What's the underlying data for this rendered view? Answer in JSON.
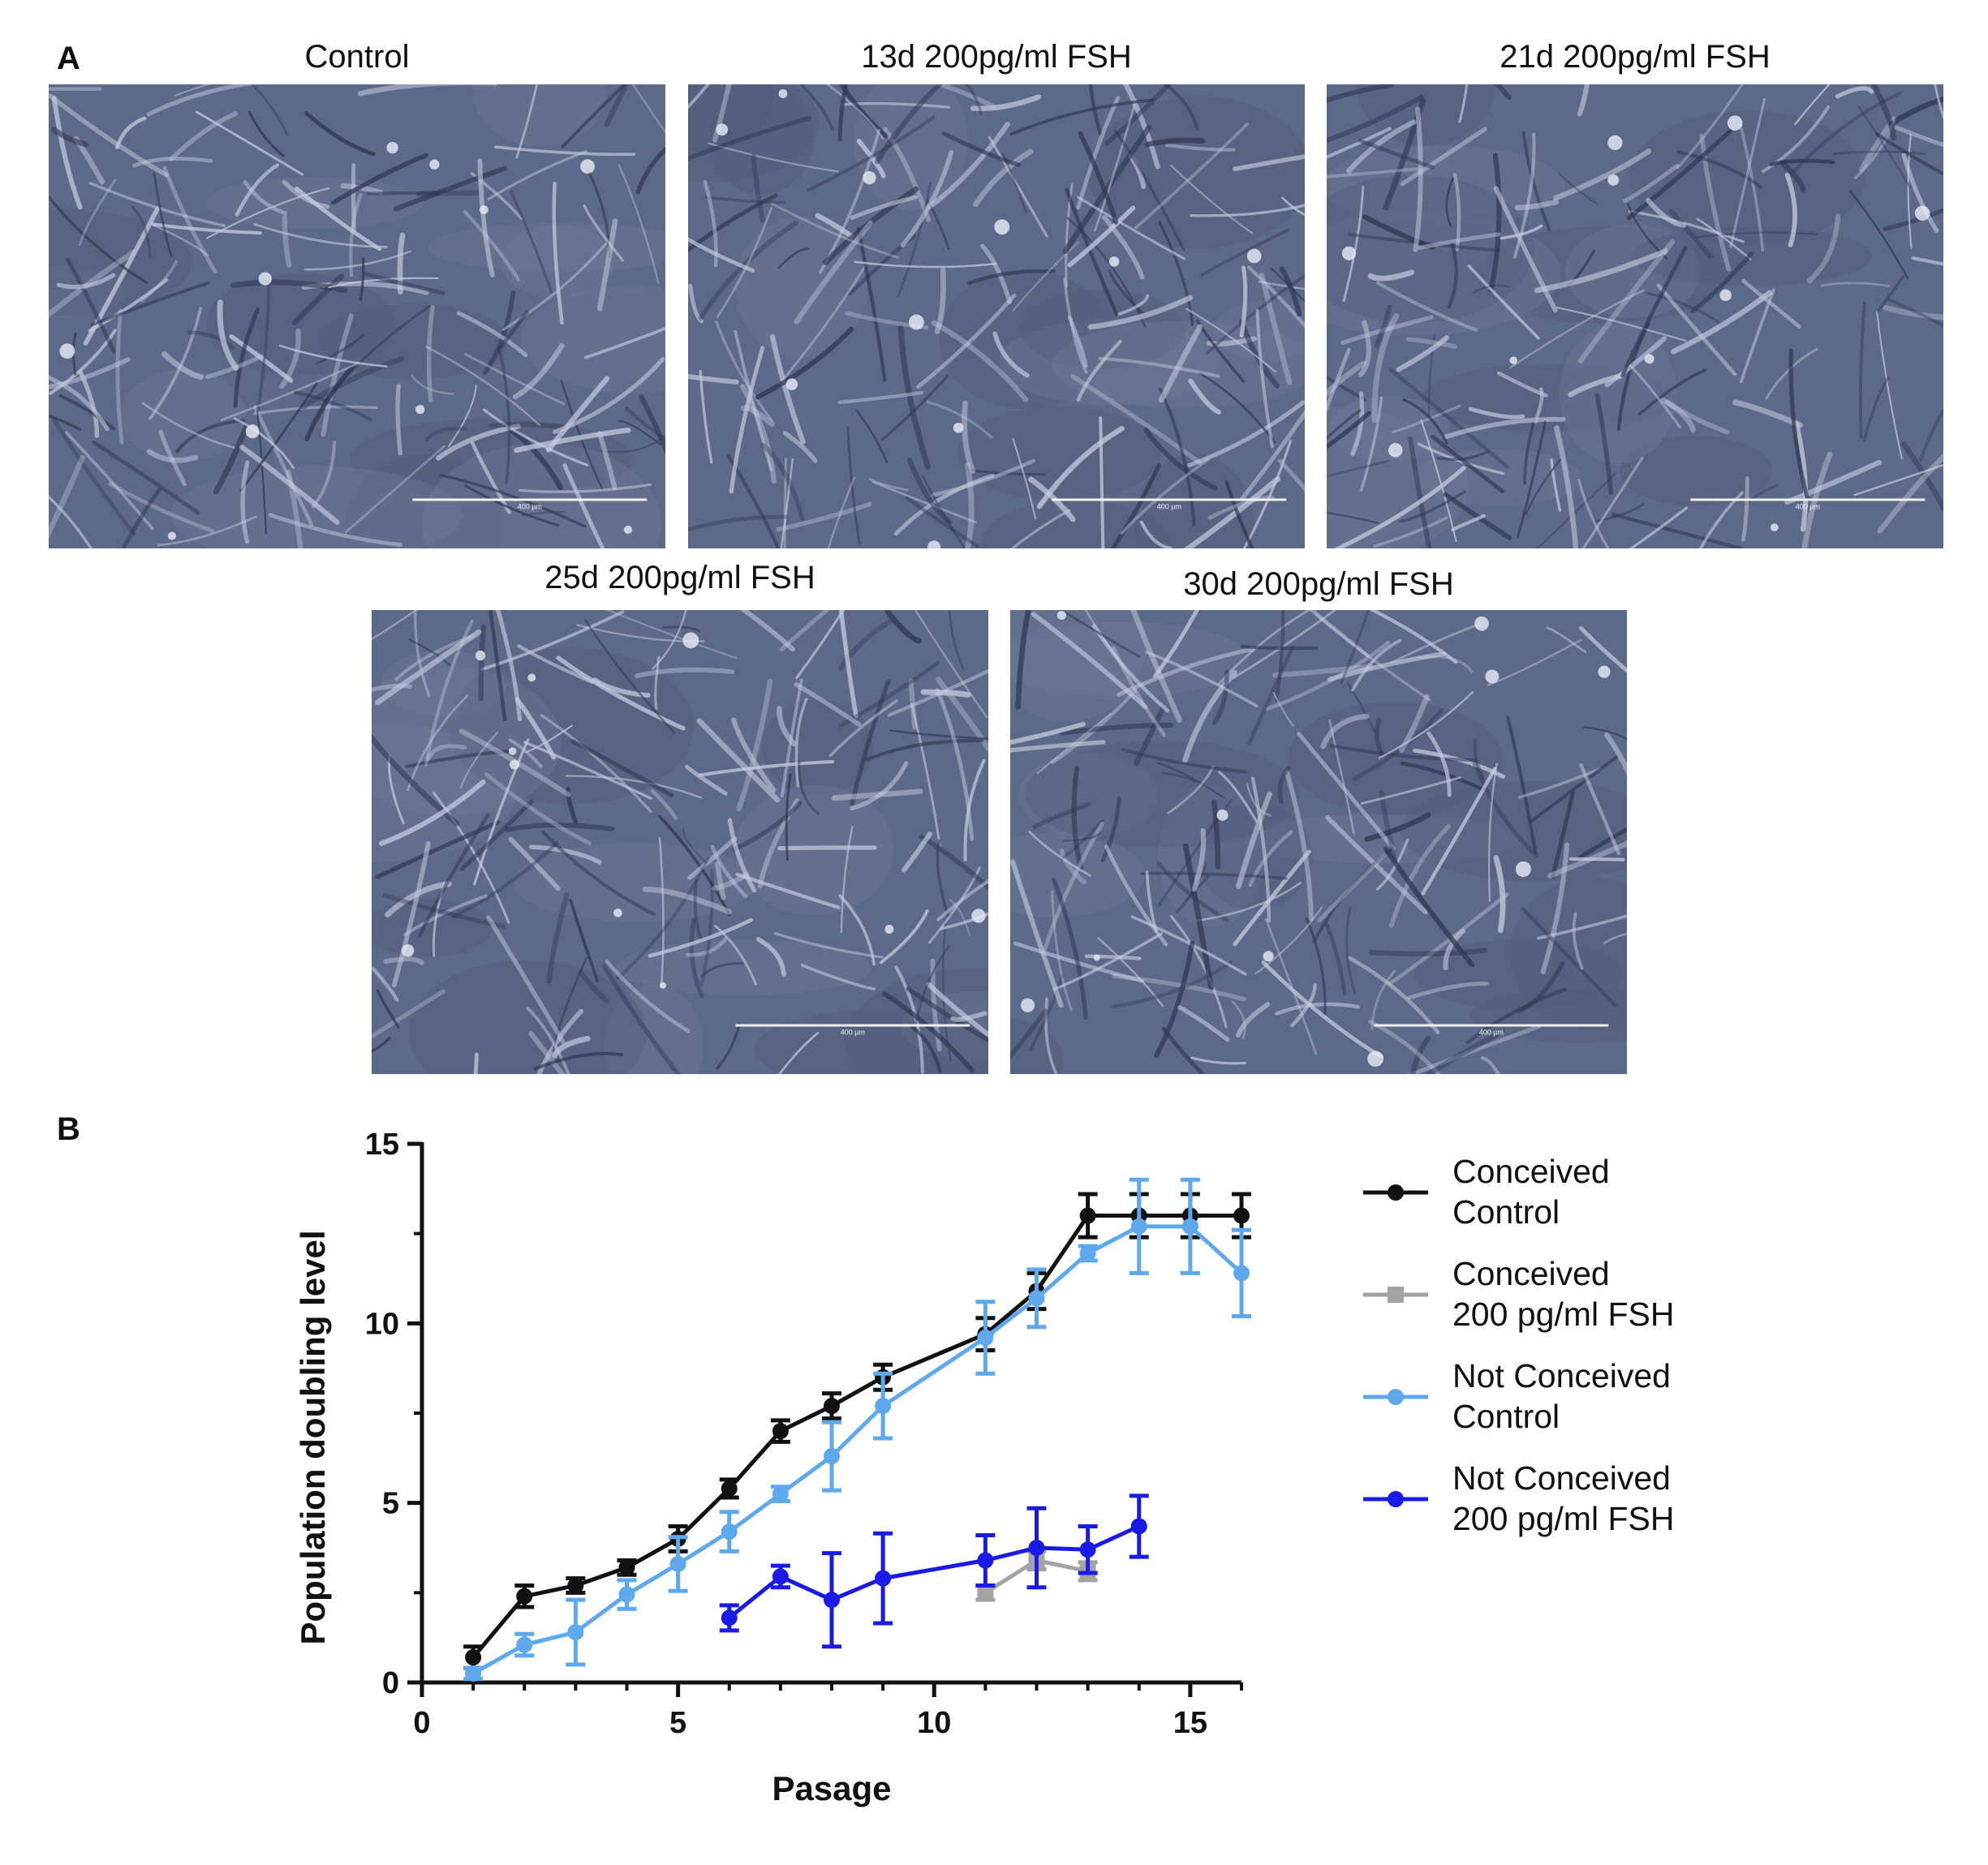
{
  "panel_a": {
    "letter": "A",
    "images": [
      {
        "title": "Control",
        "scale_text": "400 µm"
      },
      {
        "title": "13d 200pg/ml FSH",
        "scale_text": "400 µm"
      },
      {
        "title": "21d 200pg/ml FSH",
        "scale_text": "400 µm"
      },
      {
        "title": "25d 200pg/ml FSH",
        "scale_text": "400 µm"
      },
      {
        "title": "30d 200pg/ml FSH",
        "scale_text": "400 µm"
      }
    ]
  },
  "panel_b": {
    "letter": "B"
  },
  "colors": {
    "conceived_control": "#111111",
    "conceived_fsh": "#a3a3a3",
    "not_conceived_control": "#5ea9ee",
    "not_conceived_fsh": "#1a1ae6",
    "micrograph_bg": "#5d6988"
  },
  "chart_data": {
    "type": "line",
    "xlabel": "Pasage",
    "ylabel": "Population doubling level",
    "xlim": [
      0,
      16
    ],
    "ylim": [
      0,
      15
    ],
    "xticks": [
      "0",
      "5",
      "10",
      "15"
    ],
    "yticks": [
      "0",
      "5",
      "10",
      "15"
    ],
    "legend_position": "right",
    "series": [
      {
        "name_lines": [
          "Conceived",
          "Control"
        ],
        "color_key": "conceived_control",
        "x": [
          1,
          2,
          3,
          4,
          5,
          6,
          7,
          8,
          9,
          11,
          12,
          13,
          14,
          15,
          16
        ],
        "y": [
          0.7,
          2.4,
          2.7,
          3.2,
          4.0,
          5.4,
          7.0,
          7.7,
          8.5,
          9.7,
          10.9,
          13.0,
          13.0,
          13.0,
          13.0
        ],
        "err": [
          0.3,
          0.3,
          0.2,
          0.2,
          0.35,
          0.25,
          0.3,
          0.35,
          0.35,
          0.45,
          0.5,
          0.6,
          0.6,
          0.6,
          0.6
        ]
      },
      {
        "name_lines": [
          "Conceived",
          "200 pg/ml FSH"
        ],
        "color_key": "conceived_fsh",
        "x": [
          11,
          12,
          13
        ],
        "y": [
          2.5,
          3.4,
          3.1
        ],
        "err": [
          0.2,
          0.25,
          0.25
        ]
      },
      {
        "name_lines": [
          "Not Conceived",
          "Control"
        ],
        "color_key": "not_conceived_control",
        "x": [
          1,
          2,
          3,
          4,
          5,
          6,
          7,
          8,
          9,
          11,
          12,
          13,
          14,
          15,
          16
        ],
        "y": [
          0.25,
          1.05,
          1.4,
          2.45,
          3.3,
          4.2,
          5.25,
          6.3,
          7.7,
          9.6,
          10.7,
          11.95,
          12.7,
          12.7,
          11.4
        ],
        "err": [
          0.15,
          0.3,
          0.9,
          0.4,
          0.75,
          0.55,
          0.2,
          0.95,
          0.9,
          1.0,
          0.8,
          0.2,
          1.3,
          1.3,
          1.2
        ]
      },
      {
        "name_lines": [
          "Not Conceived",
          "200 pg/ml FSH"
        ],
        "color_key": "not_conceived_fsh",
        "x": [
          6,
          7,
          8,
          9,
          11,
          12,
          13,
          14
        ],
        "y": [
          1.8,
          2.95,
          2.3,
          2.9,
          3.4,
          3.75,
          3.7,
          4.35
        ],
        "err": [
          0.35,
          0.3,
          1.3,
          1.25,
          0.7,
          1.1,
          0.65,
          0.85
        ]
      }
    ]
  }
}
